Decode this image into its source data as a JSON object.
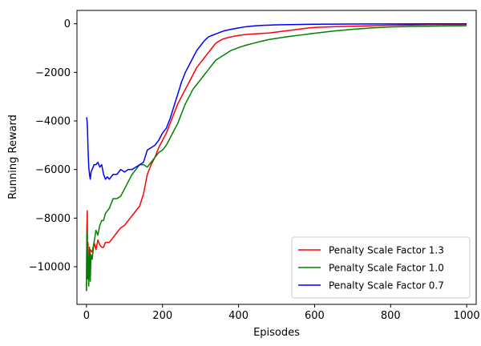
{
  "chart_data": {
    "type": "line",
    "title": "",
    "xlabel": "Episodes",
    "ylabel": "Running Reward",
    "xlim": [
      -25,
      1025
    ],
    "ylim": [
      -11550,
      550
    ],
    "x_ticks": [
      0,
      200,
      400,
      600,
      800,
      1000
    ],
    "x_tick_labels": [
      "0",
      "200",
      "400",
      "600",
      "800",
      "1000"
    ],
    "y_ticks": [
      -10000,
      -8000,
      -6000,
      -4000,
      -2000,
      0
    ],
    "y_tick_labels": [
      "−10000",
      "−8000",
      "−6000",
      "−4000",
      "−2000",
      "0"
    ],
    "grid": false,
    "legend_position": "lower-right",
    "series": [
      {
        "name": "Penalty Scale Factor 1.3",
        "color": "#ff0000",
        "x": [
          0,
          1,
          2,
          3,
          4,
          6,
          8,
          10,
          15,
          20,
          25,
          30,
          35,
          40,
          45,
          50,
          60,
          70,
          80,
          90,
          100,
          110,
          120,
          130,
          140,
          150,
          160,
          170,
          180,
          190,
          200,
          210,
          220,
          230,
          240,
          250,
          260,
          270,
          280,
          290,
          300,
          310,
          320,
          330,
          340,
          350,
          360,
          370,
          380,
          400,
          420,
          440,
          460,
          480,
          500,
          520,
          540,
          560,
          580,
          600,
          650,
          700,
          750,
          800,
          850,
          900,
          950,
          1000
        ],
        "y": [
          -11000,
          -8500,
          -7700,
          -9800,
          -9000,
          -10600,
          -9800,
          -9300,
          -9400,
          -9000,
          -9300,
          -8900,
          -9100,
          -9200,
          -9200,
          -9000,
          -9000,
          -8800,
          -8600,
          -8400,
          -8300,
          -8100,
          -7900,
          -7700,
          -7500,
          -7000,
          -6200,
          -5800,
          -5500,
          -5100,
          -4800,
          -4500,
          -4100,
          -3700,
          -3300,
          -3000,
          -2700,
          -2400,
          -2100,
          -1800,
          -1600,
          -1400,
          -1200,
          -1000,
          -800,
          -700,
          -620,
          -580,
          -540,
          -480,
          -440,
          -420,
          -400,
          -380,
          -340,
          -300,
          -260,
          -220,
          -180,
          -150,
          -120,
          -100,
          -80,
          -60,
          -50,
          -40,
          -30,
          -25
        ]
      },
      {
        "name": "Penalty Scale Factor 1.0",
        "color": "#008000",
        "x": [
          0,
          1,
          2,
          3,
          4,
          6,
          8,
          10,
          12,
          15,
          20,
          25,
          30,
          35,
          40,
          45,
          50,
          60,
          70,
          80,
          90,
          100,
          110,
          120,
          130,
          140,
          150,
          160,
          170,
          180,
          190,
          200,
          210,
          220,
          230,
          240,
          250,
          260,
          270,
          280,
          290,
          300,
          310,
          320,
          330,
          340,
          350,
          360,
          370,
          380,
          400,
          420,
          440,
          460,
          480,
          500,
          520,
          540,
          560,
          580,
          600,
          650,
          700,
          750,
          800,
          850,
          900,
          950,
          1000
        ],
        "y": [
          -11000,
          -8600,
          -9800,
          -10500,
          -9500,
          -10800,
          -9200,
          -10600,
          -9500,
          -9700,
          -9000,
          -8500,
          -8700,
          -8300,
          -8100,
          -8100,
          -7800,
          -7600,
          -7200,
          -7200,
          -7100,
          -6800,
          -6500,
          -6200,
          -6000,
          -5800,
          -5800,
          -5900,
          -5700,
          -5500,
          -5300,
          -5200,
          -5000,
          -4700,
          -4400,
          -4100,
          -3700,
          -3300,
          -3000,
          -2700,
          -2500,
          -2300,
          -2100,
          -1900,
          -1700,
          -1500,
          -1400,
          -1300,
          -1200,
          -1100,
          -980,
          -880,
          -800,
          -720,
          -650,
          -600,
          -550,
          -510,
          -470,
          -430,
          -390,
          -300,
          -230,
          -170,
          -130,
          -110,
          -100,
          -90,
          -80
        ]
      },
      {
        "name": "Penalty Scale Factor 0.7",
        "color": "#0000ff",
        "x": [
          0,
          1,
          2,
          3,
          4,
          6,
          8,
          10,
          12,
          15,
          20,
          25,
          30,
          35,
          40,
          45,
          50,
          55,
          60,
          70,
          80,
          90,
          100,
          110,
          120,
          130,
          140,
          150,
          160,
          170,
          180,
          190,
          200,
          210,
          220,
          230,
          240,
          250,
          260,
          270,
          280,
          290,
          300,
          310,
          320,
          330,
          340,
          350,
          360,
          380,
          400,
          420,
          440,
          460,
          480,
          500,
          550,
          600,
          650,
          700,
          750,
          800,
          850,
          900,
          950,
          1000
        ],
        "y": [
          -3850,
          -3900,
          -4100,
          -4500,
          -5100,
          -5900,
          -6200,
          -6400,
          -6100,
          -6000,
          -5800,
          -5800,
          -5700,
          -5900,
          -5800,
          -6200,
          -6400,
          -6300,
          -6400,
          -6200,
          -6200,
          -6000,
          -6100,
          -6000,
          -6000,
          -5900,
          -5800,
          -5700,
          -5200,
          -5100,
          -5000,
          -4800,
          -4500,
          -4300,
          -3900,
          -3400,
          -2900,
          -2400,
          -2000,
          -1700,
          -1400,
          -1100,
          -900,
          -700,
          -550,
          -480,
          -420,
          -360,
          -300,
          -230,
          -170,
          -120,
          -90,
          -70,
          -55,
          -45,
          -30,
          -20,
          -15,
          -10,
          -8,
          -6,
          -5,
          -4,
          -3,
          -2
        ]
      }
    ]
  }
}
